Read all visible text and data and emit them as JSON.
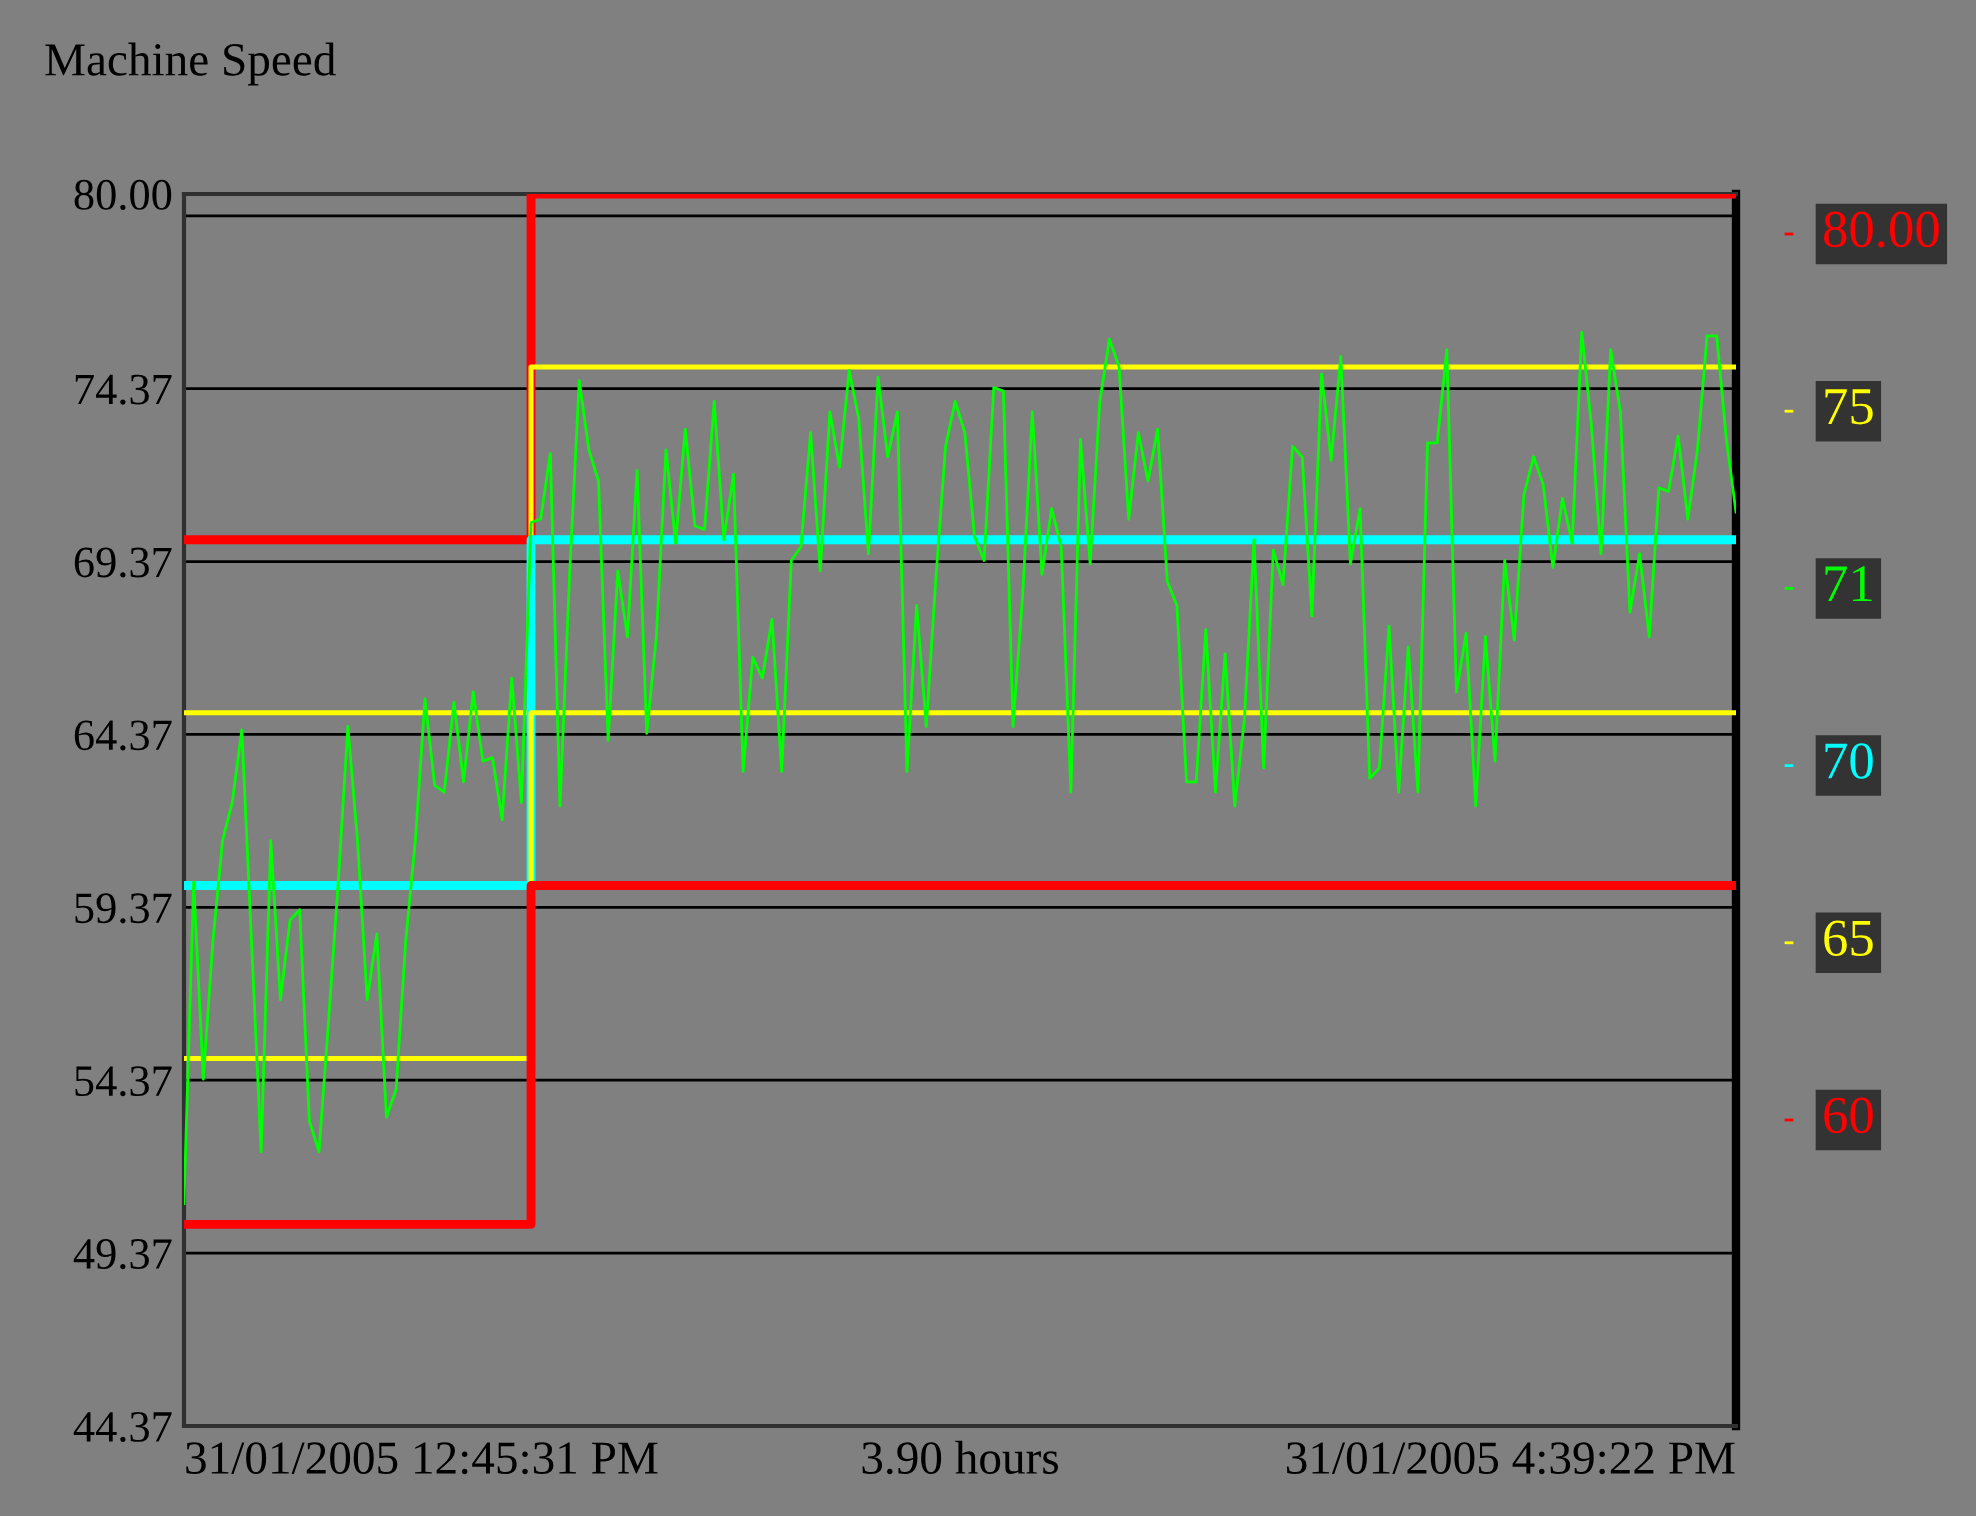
{
  "chart_data": {
    "type": "line",
    "title": "Machine Speed",
    "annotations": [
      "31/01/2005 12:45:31 PM",
      "3.90 hours",
      "31/01/2005 4:39:22 PM"
    ],
    "categories": [
      null,
      null,
      null,
      null,
      null,
      null,
      null,
      null,
      null,
      null,
      null,
      null,
      null,
      null,
      null,
      null,
      null,
      null,
      null,
      null,
      null,
      null,
      null,
      null,
      null,
      null,
      null,
      null,
      null,
      null,
      null,
      null,
      null,
      null,
      null,
      null,
      null,
      null,
      null,
      null,
      null,
      null,
      null,
      null,
      null,
      null,
      null,
      null,
      null,
      null,
      null,
      null,
      null,
      null,
      null,
      null,
      null,
      null,
      null,
      null,
      null,
      null,
      null,
      null,
      null,
      null,
      null,
      null,
      null,
      null,
      null,
      null,
      null,
      null,
      null,
      null,
      null,
      null,
      null,
      null,
      null,
      null,
      null,
      null,
      null,
      null,
      null,
      null,
      null,
      null,
      null,
      null,
      null,
      null,
      null,
      null,
      null,
      null,
      null,
      null,
      null,
      null,
      null,
      null,
      null,
      null,
      null,
      null,
      null,
      null,
      null,
      null,
      null,
      null,
      null,
      null,
      null,
      null,
      null,
      null,
      null,
      null,
      null,
      null,
      null,
      null,
      null,
      null,
      null,
      null,
      null,
      null,
      null,
      null,
      null,
      null,
      null,
      null,
      null,
      null,
      null,
      null,
      null,
      null,
      null,
      null,
      null,
      null,
      null,
      null,
      null,
      null,
      null,
      null,
      null,
      null,
      null,
      null,
      null,
      null,
      null,
      null
    ],
    "ylim": [
      44.37,
      80.0
    ],
    "yticks": [
      44.37,
      49.37,
      54.37,
      59.37,
      64.37,
      69.37,
      74.37,
      {
        "value": 79.37,
        "label": null
      },
      {
        "value": 80.0,
        "label": "80.00"
      }
    ],
    "tick_labels": "y",
    "grid": "y",
    "legend": "right",
    "series": [
      {
        "name": "80.00",
        "type": "step",
        "color": "#ff0000",
        "values": [
          70.0,
          70.0,
          70.0,
          70.0,
          70.0,
          70.0,
          70.0,
          70.0,
          70.0,
          70.0,
          70.0,
          70.0,
          70.0,
          70.0,
          70.0,
          70.0,
          70.0,
          70.0,
          70.0,
          70.0,
          70.0,
          70.0,
          70.0,
          70.0,
          70.0,
          70.0,
          70.0,
          70.0,
          70.0,
          70.0,
          70.0,
          70.0,
          70.0,
          70.0,
          70.0,
          70.0,
          80.0,
          80.0,
          80.0,
          80.0,
          80.0,
          80.0,
          80.0,
          80.0,
          80.0,
          80.0,
          80.0,
          80.0,
          80.0,
          80.0,
          80.0,
          80.0,
          80.0,
          80.0,
          80.0,
          80.0,
          80.0,
          80.0,
          80.0,
          80.0,
          80.0,
          80.0,
          80.0,
          80.0,
          80.0,
          80.0,
          80.0,
          80.0,
          80.0,
          80.0,
          80.0,
          80.0,
          80.0,
          80.0,
          80.0,
          80.0,
          80.0,
          80.0,
          80.0,
          80.0,
          80.0,
          80.0,
          80.0,
          80.0,
          80.0,
          80.0,
          80.0,
          80.0,
          80.0,
          80.0,
          80.0,
          80.0,
          80.0,
          80.0,
          80.0,
          80.0,
          80.0,
          80.0,
          80.0,
          80.0,
          80.0,
          80.0,
          80.0,
          80.0,
          80.0,
          80.0,
          80.0,
          80.0,
          80.0,
          80.0,
          80.0,
          80.0,
          80.0,
          80.0,
          80.0,
          80.0,
          80.0,
          80.0,
          80.0,
          80.0,
          80.0,
          80.0,
          80.0,
          80.0,
          80.0,
          80.0,
          80.0,
          80.0,
          80.0,
          80.0,
          80.0,
          80.0,
          80.0,
          80.0,
          80.0,
          80.0,
          80.0,
          80.0,
          80.0,
          80.0,
          80.0,
          80.0,
          80.0,
          80.0,
          80.0,
          80.0,
          80.0,
          80.0,
          80.0,
          80.0,
          80.0,
          80.0,
          80.0,
          80.0,
          80.0,
          80.0,
          80.0,
          80.0,
          80.0,
          80.0,
          80.0,
          80.0
        ]
      },
      {
        "name": "75",
        "type": "step",
        "color": "#ffff00",
        "values": [
          65.0,
          65.0,
          65.0,
          65.0,
          65.0,
          65.0,
          65.0,
          65.0,
          65.0,
          65.0,
          65.0,
          65.0,
          65.0,
          65.0,
          65.0,
          65.0,
          65.0,
          65.0,
          65.0,
          65.0,
          65.0,
          65.0,
          65.0,
          65.0,
          65.0,
          65.0,
          65.0,
          65.0,
          65.0,
          65.0,
          65.0,
          65.0,
          65.0,
          65.0,
          65.0,
          65.0,
          75.0,
          75.0,
          75.0,
          75.0,
          75.0,
          75.0,
          75.0,
          75.0,
          75.0,
          75.0,
          75.0,
          75.0,
          75.0,
          75.0,
          75.0,
          75.0,
          75.0,
          75.0,
          75.0,
          75.0,
          75.0,
          75.0,
          75.0,
          75.0,
          75.0,
          75.0,
          75.0,
          75.0,
          75.0,
          75.0,
          75.0,
          75.0,
          75.0,
          75.0,
          75.0,
          75.0,
          75.0,
          75.0,
          75.0,
          75.0,
          75.0,
          75.0,
          75.0,
          75.0,
          75.0,
          75.0,
          75.0,
          75.0,
          75.0,
          75.0,
          75.0,
          75.0,
          75.0,
          75.0,
          75.0,
          75.0,
          75.0,
          75.0,
          75.0,
          75.0,
          75.0,
          75.0,
          75.0,
          75.0,
          75.0,
          75.0,
          75.0,
          75.0,
          75.0,
          75.0,
          75.0,
          75.0,
          75.0,
          75.0,
          75.0,
          75.0,
          75.0,
          75.0,
          75.0,
          75.0,
          75.0,
          75.0,
          75.0,
          75.0,
          75.0,
          75.0,
          75.0,
          75.0,
          75.0,
          75.0,
          75.0,
          75.0,
          75.0,
          75.0,
          75.0,
          75.0,
          75.0,
          75.0,
          75.0,
          75.0,
          75.0,
          75.0,
          75.0,
          75.0,
          75.0,
          75.0,
          75.0,
          75.0,
          75.0,
          75.0,
          75.0,
          75.0,
          75.0,
          75.0,
          75.0,
          75.0,
          75.0,
          75.0,
          75.0,
          75.0,
          75.0,
          75.0,
          75.0,
          75.0,
          75.0,
          75.0
        ]
      },
      {
        "name": "71",
        "color": "#00ff00",
        "values": [
          50.8,
          60.1,
          54.4,
          58.4,
          61.3,
          62.4,
          64.5,
          58.4,
          52.3,
          61.3,
          56.7,
          59.0,
          59.3,
          53.2,
          52.3,
          56.1,
          60.1,
          64.6,
          61.3,
          56.7,
          58.6,
          53.3,
          54.1,
          58.4,
          61.3,
          65.4,
          62.9,
          62.7,
          65.3,
          63.0,
          65.6,
          63.6,
          63.7,
          61.9,
          66.0,
          62.4,
          70.5,
          70.6,
          72.5,
          62.3,
          69.0,
          74.6,
          72.6,
          71.7,
          64.2,
          69.1,
          67.2,
          72.0,
          64.4,
          67.2,
          72.6,
          69.9,
          73.2,
          70.4,
          70.3,
          74.0,
          70.0,
          71.9,
          63.3,
          66.6,
          66.0,
          67.7,
          63.3,
          69.4,
          69.8,
          73.1,
          69.1,
          73.7,
          72.1,
          74.9,
          73.5,
          69.6,
          74.7,
          72.4,
          73.7,
          63.3,
          68.1,
          64.6,
          68.9,
          72.7,
          74.0,
          73.1,
          70.1,
          69.4,
          74.4,
          74.3,
          64.6,
          68.4,
          73.7,
          69.0,
          70.9,
          69.8,
          62.7,
          72.9,
          69.3,
          74.0,
          75.8,
          75.0,
          70.6,
          73.1,
          71.7,
          73.2,
          68.8,
          68.1,
          63.0,
          63.0,
          67.4,
          62.7,
          66.7,
          62.3,
          64.8,
          70.0,
          63.4,
          69.7,
          68.7,
          72.7,
          72.4,
          67.8,
          74.8,
          72.3,
          75.3,
          69.3,
          70.9,
          63.1,
          63.4,
          67.5,
          62.7,
          66.9,
          62.7,
          72.8,
          72.8,
          75.5,
          65.6,
          67.3,
          62.3,
          67.2,
          63.6,
          69.4,
          67.1,
          71.3,
          72.4,
          71.6,
          69.2,
          71.2,
          69.9,
          76.0,
          73.3,
          69.6,
          75.5,
          73.7,
          67.9,
          69.6,
          67.2,
          71.5,
          71.4,
          73.0,
          70.6,
          72.6,
          75.9,
          75.9,
          72.9,
          70.8
        ]
      },
      {
        "name": "70",
        "type": "step",
        "color": "#00ffff",
        "values": [
          60.0,
          60.0,
          60.0,
          60.0,
          60.0,
          60.0,
          60.0,
          60.0,
          60.0,
          60.0,
          60.0,
          60.0,
          60.0,
          60.0,
          60.0,
          60.0,
          60.0,
          60.0,
          60.0,
          60.0,
          60.0,
          60.0,
          60.0,
          60.0,
          60.0,
          60.0,
          60.0,
          60.0,
          60.0,
          60.0,
          60.0,
          60.0,
          60.0,
          60.0,
          60.0,
          60.0,
          70.0,
          70.0,
          70.0,
          70.0,
          70.0,
          70.0,
          70.0,
          70.0,
          70.0,
          70.0,
          70.0,
          70.0,
          70.0,
          70.0,
          70.0,
          70.0,
          70.0,
          70.0,
          70.0,
          70.0,
          70.0,
          70.0,
          70.0,
          70.0,
          70.0,
          70.0,
          70.0,
          70.0,
          70.0,
          70.0,
          70.0,
          70.0,
          70.0,
          70.0,
          70.0,
          70.0,
          70.0,
          70.0,
          70.0,
          70.0,
          70.0,
          70.0,
          70.0,
          70.0,
          70.0,
          70.0,
          70.0,
          70.0,
          70.0,
          70.0,
          70.0,
          70.0,
          70.0,
          70.0,
          70.0,
          70.0,
          70.0,
          70.0,
          70.0,
          70.0,
          70.0,
          70.0,
          70.0,
          70.0,
          70.0,
          70.0,
          70.0,
          70.0,
          70.0,
          70.0,
          70.0,
          70.0,
          70.0,
          70.0,
          70.0,
          70.0,
          70.0,
          70.0,
          70.0,
          70.0,
          70.0,
          70.0,
          70.0,
          70.0,
          70.0,
          70.0,
          70.0,
          70.0,
          70.0,
          70.0,
          70.0,
          70.0,
          70.0,
          70.0,
          70.0,
          70.0,
          70.0,
          70.0,
          70.0,
          70.0,
          70.0,
          70.0,
          70.0,
          70.0,
          70.0,
          70.0,
          70.0,
          70.0,
          70.0,
          70.0,
          70.0,
          70.0,
          70.0,
          70.0,
          70.0,
          70.0,
          70.0,
          70.0,
          70.0,
          70.0,
          70.0,
          70.0,
          70.0,
          70.0,
          70.0,
          70.0
        ]
      },
      {
        "name": "65",
        "type": "step",
        "color": "#ffff00",
        "values": [
          55.0,
          55.0,
          55.0,
          55.0,
          55.0,
          55.0,
          55.0,
          55.0,
          55.0,
          55.0,
          55.0,
          55.0,
          55.0,
          55.0,
          55.0,
          55.0,
          55.0,
          55.0,
          55.0,
          55.0,
          55.0,
          55.0,
          55.0,
          55.0,
          55.0,
          55.0,
          55.0,
          55.0,
          55.0,
          55.0,
          55.0,
          55.0,
          55.0,
          55.0,
          55.0,
          55.0,
          65.0,
          65.0,
          65.0,
          65.0,
          65.0,
          65.0,
          65.0,
          65.0,
          65.0,
          65.0,
          65.0,
          65.0,
          65.0,
          65.0,
          65.0,
          65.0,
          65.0,
          65.0,
          65.0,
          65.0,
          65.0,
          65.0,
          65.0,
          65.0,
          65.0,
          65.0,
          65.0,
          65.0,
          65.0,
          65.0,
          65.0,
          65.0,
          65.0,
          65.0,
          65.0,
          65.0,
          65.0,
          65.0,
          65.0,
          65.0,
          65.0,
          65.0,
          65.0,
          65.0,
          65.0,
          65.0,
          65.0,
          65.0,
          65.0,
          65.0,
          65.0,
          65.0,
          65.0,
          65.0,
          65.0,
          65.0,
          65.0,
          65.0,
          65.0,
          65.0,
          65.0,
          65.0,
          65.0,
          65.0,
          65.0,
          65.0,
          65.0,
          65.0,
          65.0,
          65.0,
          65.0,
          65.0,
          65.0,
          65.0,
          65.0,
          65.0,
          65.0,
          65.0,
          65.0,
          65.0,
          65.0,
          65.0,
          65.0,
          65.0,
          65.0,
          65.0,
          65.0,
          65.0,
          65.0,
          65.0,
          65.0,
          65.0,
          65.0,
          65.0,
          65.0,
          65.0,
          65.0,
          65.0,
          65.0,
          65.0,
          65.0,
          65.0,
          65.0,
          65.0,
          65.0,
          65.0,
          65.0,
          65.0,
          65.0,
          65.0,
          65.0,
          65.0,
          65.0,
          65.0,
          65.0,
          65.0,
          65.0,
          65.0,
          65.0,
          65.0,
          65.0,
          65.0,
          65.0,
          65.0,
          65.0,
          65.0
        ]
      },
      {
        "name": "60",
        "type": "step",
        "color": "#ff0000",
        "values": [
          50.2,
          50.2,
          50.2,
          50.2,
          50.2,
          50.2,
          50.2,
          50.2,
          50.2,
          50.2,
          50.2,
          50.2,
          50.2,
          50.2,
          50.2,
          50.2,
          50.2,
          50.2,
          50.2,
          50.2,
          50.2,
          50.2,
          50.2,
          50.2,
          50.2,
          50.2,
          50.2,
          50.2,
          50.2,
          50.2,
          50.2,
          50.2,
          50.2,
          50.2,
          50.2,
          50.2,
          60.0,
          60.0,
          60.0,
          60.0,
          60.0,
          60.0,
          60.0,
          60.0,
          60.0,
          60.0,
          60.0,
          60.0,
          60.0,
          60.0,
          60.0,
          60.0,
          60.0,
          60.0,
          60.0,
          60.0,
          60.0,
          60.0,
          60.0,
          60.0,
          60.0,
          60.0,
          60.0,
          60.0,
          60.0,
          60.0,
          60.0,
          60.0,
          60.0,
          60.0,
          60.0,
          60.0,
          60.0,
          60.0,
          60.0,
          60.0,
          60.0,
          60.0,
          60.0,
          60.0,
          60.0,
          60.0,
          60.0,
          60.0,
          60.0,
          60.0,
          60.0,
          60.0,
          60.0,
          60.0,
          60.0,
          60.0,
          60.0,
          60.0,
          60.0,
          60.0,
          60.0,
          60.0,
          60.0,
          60.0,
          60.0,
          60.0,
          60.0,
          60.0,
          60.0,
          60.0,
          60.0,
          60.0,
          60.0,
          60.0,
          60.0,
          60.0,
          60.0,
          60.0,
          60.0,
          60.0,
          60.0,
          60.0,
          60.0,
          60.0,
          60.0,
          60.0,
          60.0,
          60.0,
          60.0,
          60.0,
          60.0,
          60.0,
          60.0,
          60.0,
          60.0,
          60.0,
          60.0,
          60.0,
          60.0,
          60.0,
          60.0,
          60.0,
          60.0,
          60.0,
          60.0,
          60.0,
          60.0,
          60.0,
          60.0,
          60.0,
          60.0,
          60.0,
          60.0,
          60.0,
          60.0,
          60.0,
          60.0,
          60.0,
          60.0,
          60.0,
          60.0,
          60.0,
          60.0,
          60.0,
          60.0,
          60.0
        ]
      }
    ]
  }
}
